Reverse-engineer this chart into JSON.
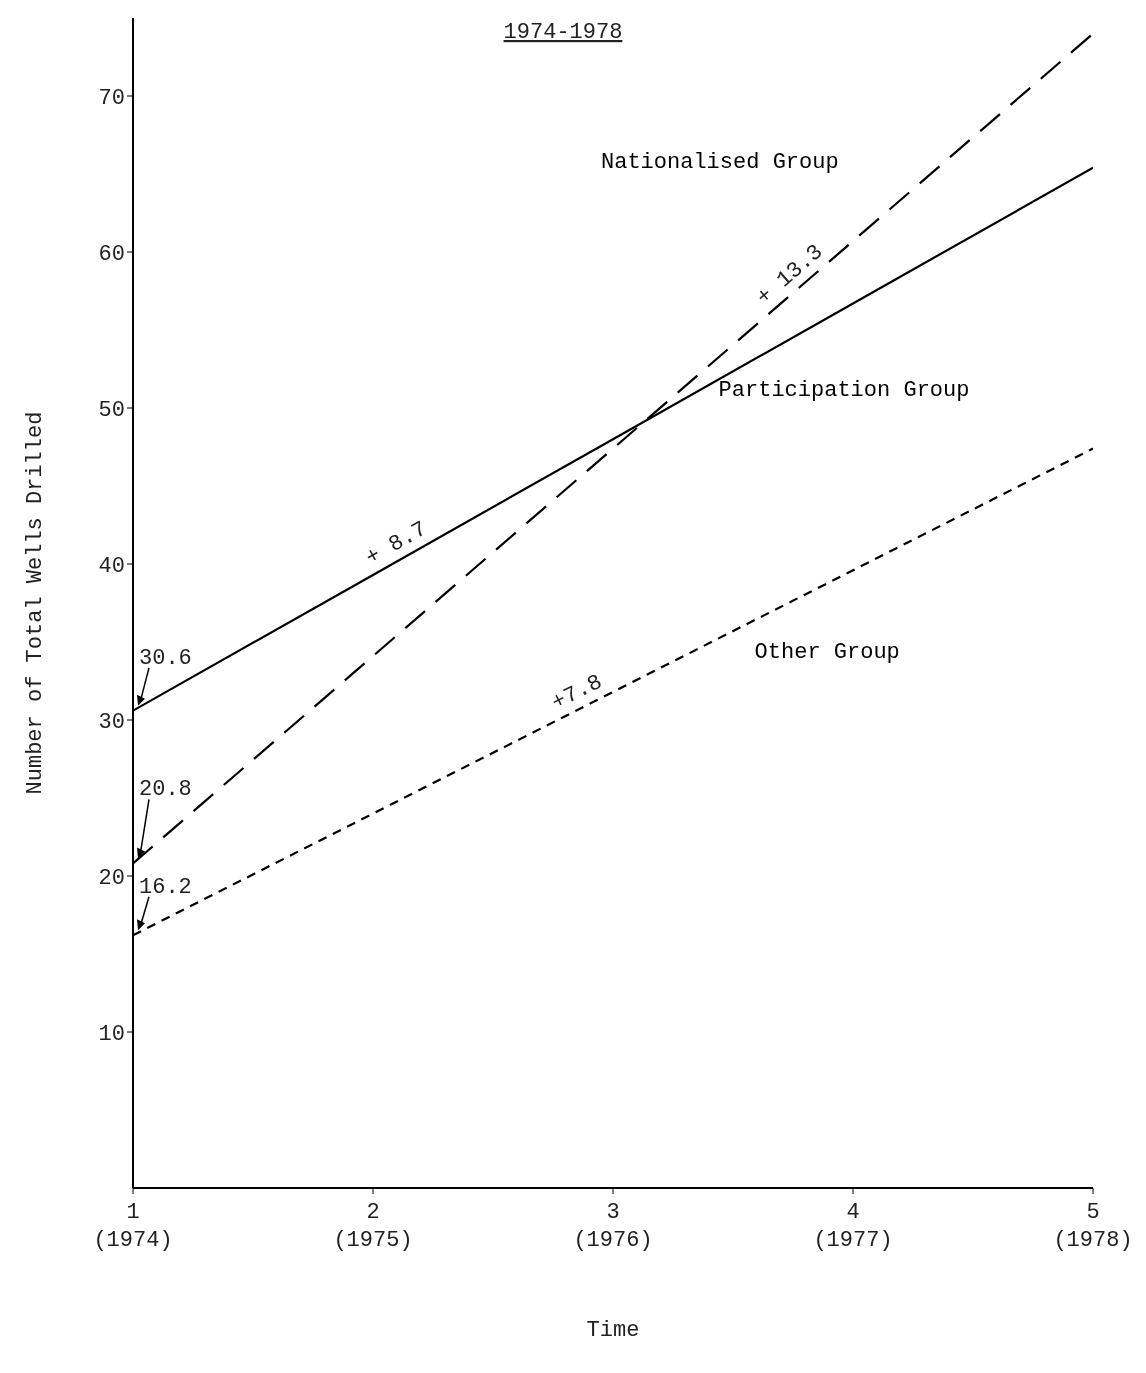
{
  "chart_data": {
    "type": "line",
    "title": "1974-1978",
    "xlabel": "Time",
    "ylabel": "Number of Total Wells Drilled",
    "categories": [
      "1\n(1974)",
      "2\n(1975)",
      "3\n(1976)",
      "4\n(1977)",
      "5\n(1978)"
    ],
    "series": [
      {
        "name": "Nationalised Group",
        "color": "#000000",
        "line_style": "dashed",
        "values": [
          20.8,
          34.1,
          47.4,
          60.7,
          74.0
        ],
        "value_labels": [
          "20.8",
          null,
          null,
          null,
          null
        ]
      },
      {
        "name": "Participation Group",
        "color": "#000000",
        "line_style": "solid",
        "values": [
          30.6,
          39.3,
          48.0,
          56.7,
          65.4
        ],
        "value_labels": [
          "30.6",
          null,
          null,
          null,
          null
        ]
      },
      {
        "name": "Other Group",
        "color": "#000000",
        "line_style": "dotted",
        "values": [
          16.2,
          24.0,
          31.8,
          39.6,
          47.4
        ],
        "value_labels": [
          "16.2",
          null,
          null,
          null,
          null
        ]
      }
    ],
    "annotations": [
      "+ 13.3",
      "+ 8.7",
      "+7.8"
    ],
    "ylim": [
      0,
      75
    ],
    "yticks": [
      10,
      20,
      30,
      40,
      50,
      60,
      70
    ],
    "grid": false,
    "legend": false,
    "marker": "none"
  }
}
